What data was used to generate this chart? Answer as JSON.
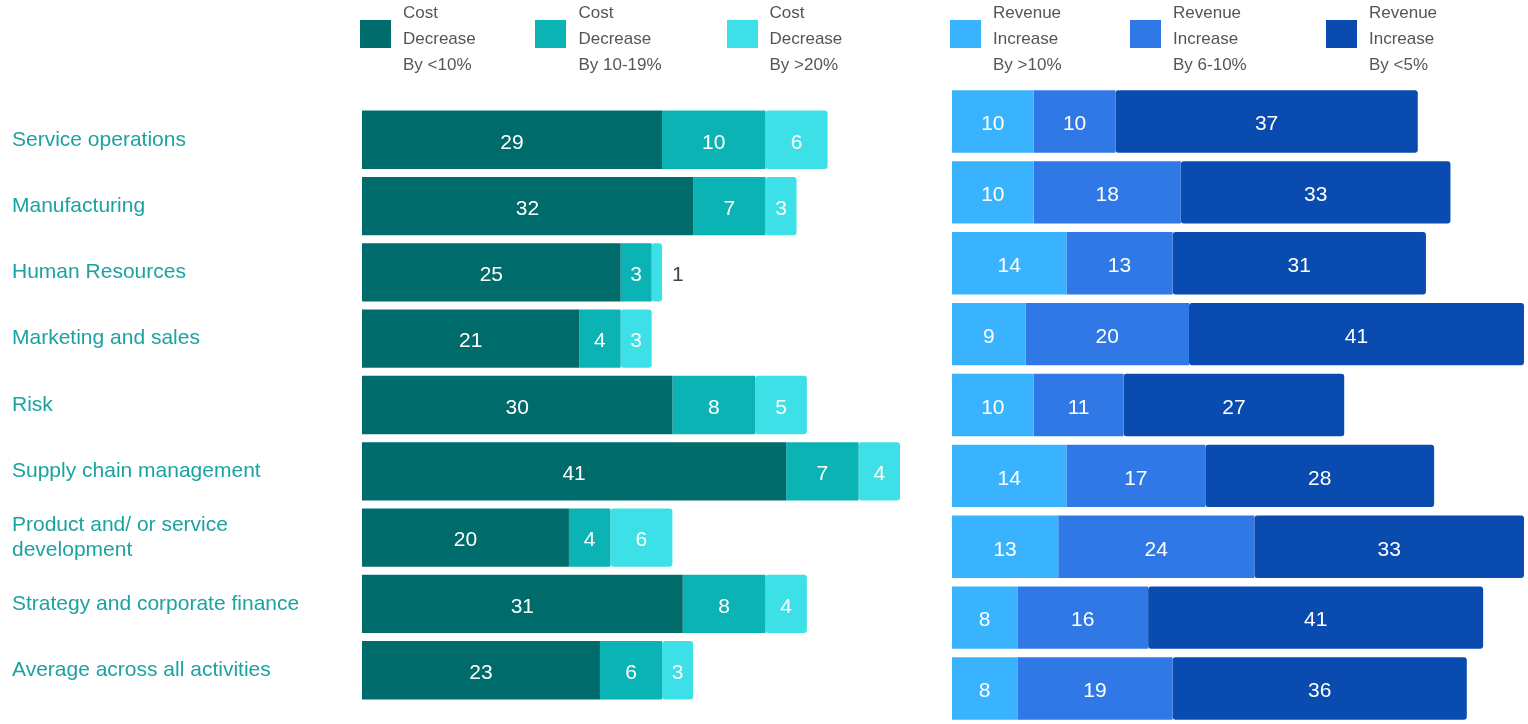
{
  "chart_data": [
    {
      "type": "bar",
      "orientation": "horizontal",
      "stacked": true,
      "data_labels": true,
      "legend": "top",
      "tick_labels": "y",
      "categories": [
        "Service operations",
        "Manufacturing",
        "Human Resources",
        "Marketing and sales",
        "Risk",
        "Supply chain management",
        "Product and/ or service development",
        "Strategy and corporate finance",
        "Average across all activities"
      ],
      "series": [
        {
          "name": "Cost Decrease By <10%",
          "color": "#006b6b",
          "values": [
            29,
            32,
            25,
            21,
            30,
            41,
            20,
            31,
            23
          ]
        },
        {
          "name": "Cost Decrease By 10-19%",
          "color": "#0bb3b5",
          "values": [
            10,
            7,
            3,
            4,
            8,
            7,
            4,
            8,
            6
          ]
        },
        {
          "name": "Cost Decrease By >20%",
          "color": "#3de0e6",
          "values": [
            6,
            3,
            1,
            3,
            5,
            4,
            6,
            4,
            3
          ]
        }
      ]
    },
    {
      "type": "bar",
      "orientation": "horizontal",
      "stacked": true,
      "data_labels": true,
      "legend": "top",
      "tick_labels": false,
      "categories": [
        null,
        null,
        null,
        null,
        null,
        null,
        null,
        null,
        null
      ],
      "series": [
        {
          "name": "Revenue Increase By >10%",
          "color": "#3ab3ff",
          "values": [
            10,
            10,
            14,
            9,
            10,
            14,
            13,
            8,
            8
          ]
        },
        {
          "name": "Revenue Increase By 6-10%",
          "color": "#2f78e6",
          "values": [
            10,
            18,
            13,
            20,
            11,
            17,
            24,
            16,
            19
          ]
        },
        {
          "name": "Revenue Increase By <5%",
          "color": "#0a4bb0",
          "values": [
            37,
            33,
            31,
            41,
            27,
            28,
            33,
            41,
            36
          ]
        }
      ]
    }
  ]
}
